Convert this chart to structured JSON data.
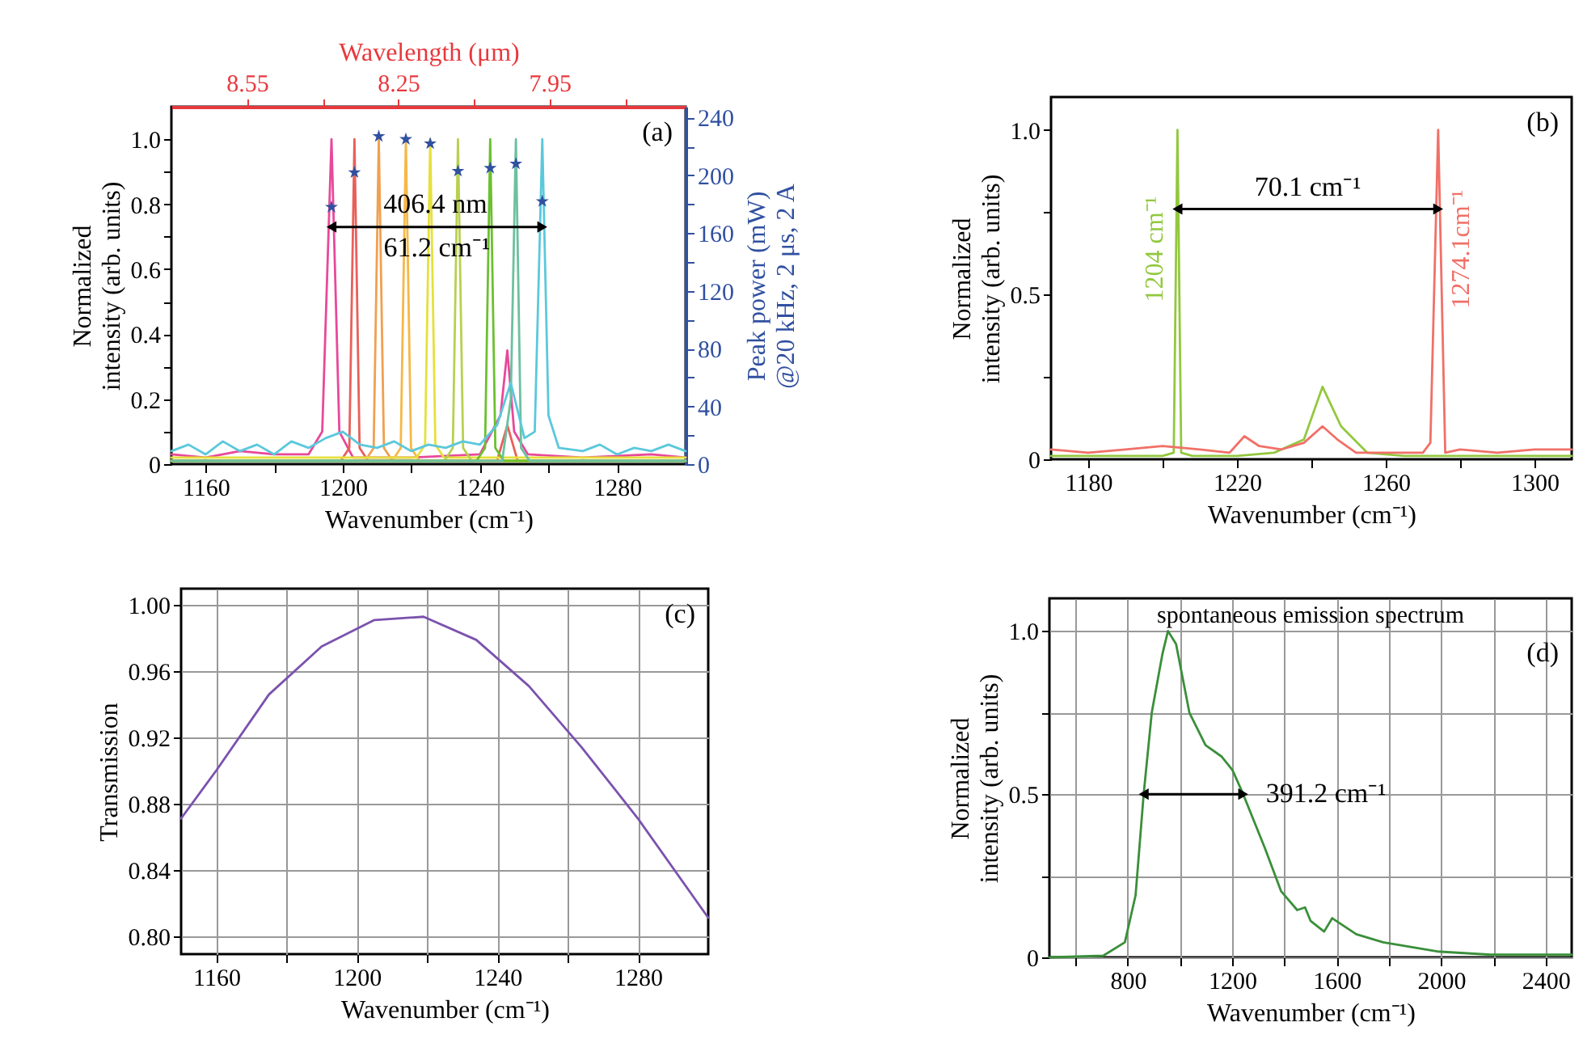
{
  "chart_data": [
    {
      "type": "line",
      "xlabel": "Wavenumber (cm⁻¹)",
      "ylabel": "Normalized\nintensity (arb. units)",
      "y2label": "Peak power (mW)\n@20 kHz, 2 μs, 2 A",
      "x2label": "Wavelength (μm)",
      "xlim": [
        1150,
        1300
      ],
      "ylim": [
        0,
        1.1
      ],
      "y2lim": [
        0,
        247.5
      ],
      "x2lim": [
        8.7,
        7.68
      ],
      "xticks": [
        1160,
        {
          "value": 1180,
          "label": null
        },
        1200,
        {
          "value": 1220,
          "label": null
        },
        1240,
        {
          "value": 1260,
          "label": null
        },
        1280
      ],
      "yticks": [
        0,
        {
          "value": 0.1,
          "label": null
        },
        0.2,
        {
          "value": 0.3,
          "label": null
        },
        0.4,
        {
          "value": 0.5,
          "label": null
        },
        0.6,
        {
          "value": 0.7,
          "label": null
        },
        0.8,
        {
          "value": 0.9,
          "label": null
        },
        {
          "value": 1,
          "label": "1.0"
        }
      ],
      "y2ticks": [
        0,
        {
          "value": 20,
          "label": null
        },
        40,
        {
          "value": 60,
          "label": null
        },
        80,
        {
          "value": 100,
          "label": null
        },
        120,
        {
          "value": 140,
          "label": null
        },
        160,
        {
          "value": 180,
          "label": null
        },
        200,
        {
          "value": 220,
          "label": null
        },
        240
      ],
      "x2ticks": [
        8.55,
        {
          "value": 8.4,
          "label": null
        },
        8.25,
        {
          "value": 8.1,
          "label": null
        },
        7.95,
        {
          "value": 7.8,
          "label": null
        }
      ],
      "series": [
        {
          "color": "#e8499a",
          "x": [
            1150,
            1160,
            1170,
            1180,
            1190,
            1194,
            1196.7,
            1199,
            1203,
            1220,
            1240,
            1246,
            1248,
            1250,
            1254,
            1270,
            1290,
            1300
          ],
          "values": [
            0.03,
            0.02,
            0.04,
            0.03,
            0.03,
            0.1,
            1.0,
            0.1,
            0.02,
            0.02,
            0.03,
            0.15,
            0.35,
            0.1,
            0.03,
            0.02,
            0.03,
            0.02
          ]
        },
        {
          "color": "#e8605a",
          "x": [
            1150,
            1199.4,
            1201.9,
            1203.4,
            1204.9,
            1207.4,
            1245,
            1248,
            1251,
            1300
          ],
          "values": [
            0.01,
            0.01,
            0.05,
            1.0,
            0.05,
            0.01,
            0.01,
            0.12,
            0.01,
            0.01
          ]
        },
        {
          "color": "#f0a050",
          "x": [
            1150,
            1206.5,
            1209,
            1210.5,
            1212,
            1214.5,
            1300
          ],
          "values": [
            0.01,
            0.01,
            0.05,
            1.0,
            0.05,
            0.01,
            0.01
          ]
        },
        {
          "color": "#f5b848",
          "x": [
            1150,
            1214.4,
            1216.9,
            1218.4,
            1219.9,
            1222.4,
            1300
          ],
          "values": [
            0.01,
            0.01,
            0.05,
            1.0,
            0.05,
            0.01,
            0.01
          ]
        },
        {
          "color": "#e6e03c",
          "x": [
            1150,
            1221.5,
            1224,
            1225.5,
            1227,
            1229.5,
            1300
          ],
          "values": [
            0.02,
            0.02,
            0.06,
            1.0,
            0.06,
            0.02,
            0.02
          ]
        },
        {
          "color": "#b8d050",
          "x": [
            1150,
            1229.6,
            1232.1,
            1233.6,
            1235.1,
            1237.6,
            1300
          ],
          "values": [
            0.01,
            0.01,
            0.05,
            1.0,
            0.05,
            0.01,
            0.01
          ]
        },
        {
          "color": "#6cc030",
          "x": [
            1150,
            1239,
            1241.5,
            1243,
            1244.5,
            1247,
            1300
          ],
          "values": [
            0.01,
            0.01,
            0.05,
            1.0,
            0.05,
            0.01,
            0.01
          ]
        },
        {
          "color": "#6cc0a0",
          "x": [
            1150,
            1246.5,
            1249,
            1250.5,
            1252,
            1254.5,
            1300
          ],
          "values": [
            0.01,
            0.01,
            0.2,
            1.0,
            0.05,
            0.01,
            0.01
          ]
        },
        {
          "color": "#5bc8dc",
          "x": [
            1150,
            1155,
            1160,
            1165,
            1170,
            1175,
            1180,
            1185,
            1190,
            1195,
            1200,
            1205,
            1210,
            1215,
            1220,
            1225,
            1230,
            1235,
            1240,
            1245,
            1249,
            1253,
            1256,
            1258.2,
            1260,
            1263,
            1270,
            1275,
            1280,
            1285,
            1290,
            1295,
            1300
          ],
          "values": [
            0.04,
            0.06,
            0.03,
            0.07,
            0.04,
            0.06,
            0.03,
            0.07,
            0.05,
            0.08,
            0.1,
            0.06,
            0.05,
            0.07,
            0.04,
            0.06,
            0.05,
            0.07,
            0.06,
            0.12,
            0.25,
            0.08,
            0.1,
            1.0,
            0.15,
            0.05,
            0.04,
            0.06,
            0.03,
            0.05,
            0.04,
            0.06,
            0.04
          ]
        },
        {
          "type": "scatter",
          "axis": "y2",
          "marker": "star",
          "color": "#3050a0",
          "x": [
            1196.7,
            1203.4,
            1210.5,
            1218.4,
            1225.5,
            1233.6,
            1243.0,
            1250.5,
            1258.2
          ],
          "values": [
            178,
            202,
            227,
            225,
            222,
            203,
            205,
            208,
            182
          ]
        }
      ],
      "annotations": [
        {
          "text": "61.2 cm⁻¹",
          "x": 1196.7,
          "y": 0.73
        },
        {
          "text": "406.4 nm",
          "x": 1227,
          "y": 0.8
        },
        "(a)"
      ]
    },
    {
      "type": "line",
      "xlabel": "Wavenumber (cm⁻¹)",
      "ylabel": "Normalized\nintensity (arb. units)",
      "xlim": [
        1170,
        1310
      ],
      "ylim": [
        0,
        1.1
      ],
      "xticks": [
        1180,
        {
          "value": 1200,
          "label": null
        },
        1220,
        {
          "value": 1240,
          "label": null
        },
        1260,
        {
          "value": 1280,
          "label": null
        },
        1300
      ],
      "yticks": [
        0,
        {
          "value": 0.25,
          "label": null
        },
        0.5,
        {
          "value": 0.75,
          "label": null
        },
        {
          "value": 1,
          "label": "1.0"
        }
      ],
      "series": [
        {
          "name": "1204 cm⁻¹",
          "color": "#92c83e",
          "x": [
            1170,
            1200,
            1203,
            1204,
            1205,
            1208,
            1220,
            1230,
            1238,
            1243,
            1248,
            1255,
            1265,
            1310
          ],
          "values": [
            0.01,
            0.01,
            0.02,
            1.0,
            0.02,
            0.01,
            0.01,
            0.02,
            0.06,
            0.22,
            0.1,
            0.02,
            0.01,
            0.01
          ]
        },
        {
          "name": "1274.1cm⁻¹",
          "color": "#f07068",
          "x": [
            1170,
            1180,
            1190,
            1200,
            1210,
            1218,
            1222,
            1226,
            1232,
            1238,
            1243,
            1247,
            1252,
            1260,
            1270,
            1272,
            1274.1,
            1276,
            1280,
            1290,
            1300,
            1310
          ],
          "values": [
            0.03,
            0.02,
            0.03,
            0.04,
            0.03,
            0.02,
            0.07,
            0.04,
            0.03,
            0.05,
            0.1,
            0.06,
            0.02,
            0.02,
            0.02,
            0.05,
            1.0,
            0.02,
            0.03,
            0.02,
            0.03,
            0.03
          ]
        }
      ],
      "annotations": [
        {
          "text": "70.1 cm⁻¹",
          "x": 1204,
          "y": 0.76
        },
        "(b)"
      ]
    },
    {
      "type": "line",
      "xlabel": "Wavenumber (cm⁻¹)",
      "ylabel": "Transmission",
      "xlim": [
        1150,
        1300
      ],
      "ylim": [
        0.789,
        1.01
      ],
      "grid": true,
      "xticks": [
        1160,
        {
          "value": 1180,
          "label": null
        },
        1200,
        {
          "value": 1220,
          "label": null
        },
        1240,
        {
          "value": 1260,
          "label": null
        },
        1280
      ],
      "yticks": [
        {
          "value": 0.8,
          "label": "0.80"
        },
        0.84,
        0.88,
        0.92,
        0.96,
        {
          "value": 1,
          "label": "1.00"
        }
      ],
      "series": [
        {
          "color": "#7b52ae",
          "x": [
            1150,
            1160,
            1175,
            1190,
            1205,
            1219,
            1234,
            1249,
            1264,
            1280,
            1300
          ],
          "values": [
            0.871,
            0.9,
            0.946,
            0.975,
            0.991,
            0.993,
            0.979,
            0.951,
            0.914,
            0.871,
            0.811
          ]
        }
      ],
      "annotations": [
        "(c)"
      ]
    },
    {
      "type": "line",
      "xlabel": "Wavenumber (cm⁻¹)",
      "ylabel": "Normalized\nintensity (arb. units)",
      "xlim": [
        500,
        2500
      ],
      "ylim": [
        0,
        1.1
      ],
      "grid": true,
      "xticks": [
        {
          "value": 600,
          "label": null
        },
        800,
        {
          "value": 1000,
          "label": null
        },
        1200,
        {
          "value": 1400,
          "label": null
        },
        1600,
        {
          "value": 1800,
          "label": null
        },
        2000,
        {
          "value": 2200,
          "label": null
        },
        2400
      ],
      "yticks": [
        0,
        {
          "value": 0.25,
          "label": null
        },
        0.5,
        {
          "value": 0.75,
          "label": null
        },
        {
          "value": 1,
          "label": "1.0"
        }
      ],
      "series": [
        {
          "color": "#3a8f3a",
          "x": [
            500,
            706,
            789,
            830,
            861,
            892,
            933,
            954,
            985,
            1036,
            1098,
            1160,
            1201,
            1242,
            1325,
            1387,
            1449,
            1479,
            1500,
            1552,
            1583,
            1675,
            1778,
            1985,
            2191,
            2500
          ],
          "values": [
            0,
            0.005,
            0.046,
            0.19,
            0.5,
            0.75,
            0.93,
            1.0,
            0.96,
            0.75,
            0.65,
            0.615,
            0.574,
            0.5,
            0.335,
            0.203,
            0.145,
            0.153,
            0.112,
            0.079,
            0.12,
            0.071,
            0.046,
            0.018,
            0.008,
            0.008
          ]
        }
      ],
      "annotations": [
        {
          "text": "391.2 cm⁻¹",
          "x": 1242,
          "y": 0.5
        },
        "spontaneous emission spectrum",
        "(d)"
      ]
    }
  ]
}
